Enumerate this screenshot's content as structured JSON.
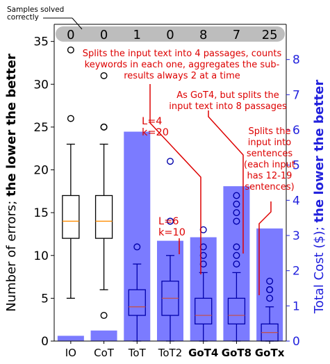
{
  "chart_data": {
    "type": "bar",
    "categories": [
      "IO",
      "CoT",
      "ToT",
      "ToT2",
      "GoT4",
      "GoT8",
      "GoTx"
    ],
    "bold_categories": [
      "GoT4",
      "GoT8",
      "GoTx"
    ],
    "left_axis": {
      "label_normal": "Number of errors; ",
      "label_bold": "the lower the better",
      "ylim": [
        0,
        37
      ],
      "ticks": [
        0,
        5,
        10,
        15,
        20,
        25,
        30,
        35
      ]
    },
    "right_axis": {
      "label_normal": "Total Cost ($); ",
      "label_bold": "the lower the better",
      "ylim": [
        0,
        9.0
      ],
      "ticks": [
        0,
        1,
        2,
        3,
        4,
        5,
        6,
        7,
        8
      ],
      "color": "#2222dd"
    },
    "cost_bars": {
      "values": [
        0.15,
        0.3,
        5.95,
        2.85,
        2.95,
        4.4,
        3.2
      ],
      "color": "#7b7bff"
    },
    "error_boxes": [
      {
        "category": "IO",
        "whisker_low": 5,
        "q1": 12,
        "median": 14,
        "q3": 17,
        "whisker_high": 23,
        "fliers": [
          26,
          34
        ],
        "style": "plain"
      },
      {
        "category": "CoT",
        "whisker_low": 6,
        "q1": 12,
        "median": 14,
        "q3": 17,
        "whisker_high": 23,
        "fliers": [
          3,
          25,
          25,
          31
        ],
        "style": "plain"
      },
      {
        "category": "ToT",
        "whisker_low": 0,
        "q1": 3,
        "median": 4,
        "q3": 6,
        "whisker_high": 9,
        "fliers": [
          11
        ],
        "style": "blue"
      },
      {
        "category": "ToT2",
        "whisker_low": 0,
        "q1": 3,
        "median": 5,
        "q3": 7,
        "whisker_high": 10,
        "fliers": [
          14,
          14,
          21
        ],
        "style": "blue"
      },
      {
        "category": "GoT4",
        "whisker_low": 0,
        "q1": 2,
        "median": 3,
        "q3": 5,
        "whisker_high": 8,
        "fliers": [
          9,
          10,
          11,
          13
        ],
        "style": "blue"
      },
      {
        "category": "GoT8",
        "whisker_low": 0,
        "q1": 2,
        "median": 3,
        "q3": 5,
        "whisker_high": 8,
        "fliers": [
          9,
          10,
          11,
          14,
          15,
          16,
          17
        ],
        "style": "blue"
      },
      {
        "category": "GoTx",
        "whisker_low": 0,
        "q1": 0,
        "median": 1,
        "q3": 2,
        "whisker_high": 4,
        "fliers": [
          5,
          6,
          6,
          7
        ],
        "style": "blue"
      }
    ],
    "samples_solved": {
      "label": "Samples solved correctly",
      "values": [
        "0",
        "0",
        "1",
        "0",
        "8",
        "7",
        "25"
      ]
    },
    "annotations": [
      {
        "id": "tot-params",
        "lines": [
          "L=4",
          "k=20"
        ],
        "color": "#dd0000"
      },
      {
        "id": "tot2-params",
        "lines": [
          "L=6",
          "k=10"
        ],
        "color": "#dd0000"
      },
      {
        "id": "got4-desc",
        "lines": [
          "Splits the input text into 4 passages, counts",
          "keywords in each one, aggregates the sub-",
          "results always 2 at a time"
        ],
        "color": "#dd0000"
      },
      {
        "id": "got8-desc",
        "lines": [
          "As GoT4, but splits the",
          "input text into 8 passages"
        ],
        "color": "#dd0000"
      },
      {
        "id": "gotx-desc",
        "lines": [
          "Splits the",
          "input into",
          "sentences",
          "(each input",
          "has 12-19",
          "sentences)"
        ],
        "color": "#dd0000"
      }
    ],
    "grid": false,
    "colors": {
      "median": "#ff8c00",
      "median_blue": "#c05050",
      "box_blue": "#0000aa",
      "box_plain": "#000000",
      "solved_band": "#bdbdbd"
    }
  }
}
